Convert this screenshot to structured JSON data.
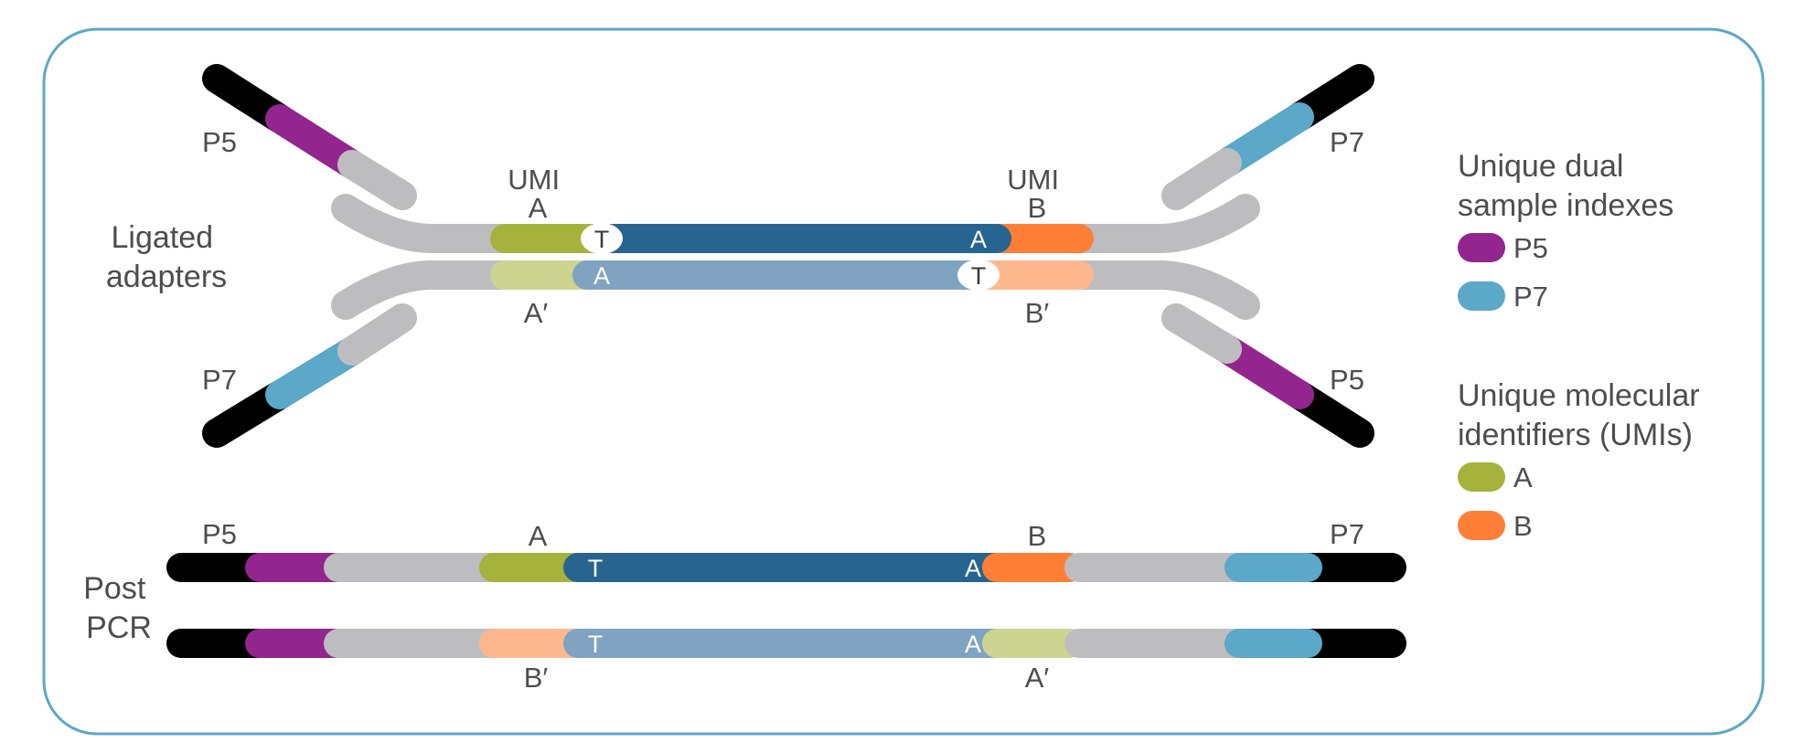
{
  "colors": {
    "frame": "#5ba8c8",
    "adapter_gray": "#bdbdbf",
    "flowcell_black": "#000000",
    "p5_index": "#93258f",
    "p7_index": "#5ba8c8",
    "umi_a": "#a5b23c",
    "umi_a_prime": "#cdd48f",
    "umi_b": "#ff7f36",
    "umi_b_prime": "#ffb78e",
    "insert_top": "#27648f",
    "insert_bottom": "#7fa3c1"
  },
  "ligated": {
    "label_line1": "Ligated",
    "label_line2": "adapters",
    "p5_top": "P5",
    "p7_top": "P7",
    "p7_bottom": "P7",
    "p5_bottom": "P5",
    "umi_a_line1": "UMI",
    "umi_a_line2": "A",
    "umi_b_line1": "UMI",
    "umi_b_line2": "B",
    "a_prime": "A′",
    "b_prime": "B′",
    "top_t": "T",
    "top_a": "A",
    "bottom_a": "A",
    "bottom_t": "T"
  },
  "post_pcr": {
    "label_line1": "Post",
    "label_line2": "PCR",
    "p5": "P5",
    "p7": "P7",
    "top_umi_a": "A",
    "top_umi_b": "B",
    "bottom_b_prime": "B′",
    "bottom_a_prime": "A′",
    "top_t": "T",
    "top_a": "A",
    "bottom_t": "T",
    "bottom_a": "A"
  },
  "legend": {
    "indexes_title_line1": "Unique dual",
    "indexes_title_line2": "sample indexes",
    "p5": "P5",
    "p7": "P7",
    "umis_title_line1": "Unique molecular",
    "umis_title_line2": "identifiers (UMIs)",
    "a": "A",
    "b": "B"
  }
}
